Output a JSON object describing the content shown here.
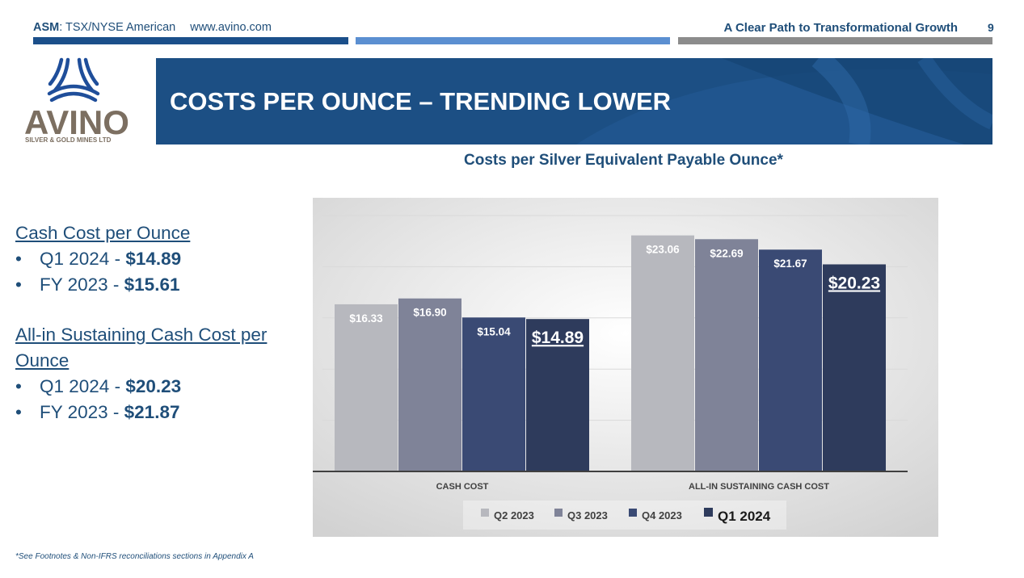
{
  "header": {
    "ticker_label": "ASM",
    "ticker_rest": ": TSX/NYSE American",
    "website": "www.avino.com",
    "tagline": "A Clear Path to Transformational Growth",
    "page_number": "9"
  },
  "logo": {
    "name": "AVINO",
    "subtitle": "SILVER & GOLD MINES LTD",
    "icon": "avino-logo-icon"
  },
  "banner": {
    "title": "COSTS PER OUNCE – TRENDING LOWER"
  },
  "colors": {
    "banner": "#1c4f84",
    "accent_text": "#1f4e79",
    "q2_2023": "#b7b8be",
    "q3_2023": "#7f8398",
    "q4_2023": "#3a4a74",
    "q1_2024": "#2e3b5c"
  },
  "left_panel": {
    "cash_cost_heading": "Cash Cost per Ounce",
    "cash_cost_items": [
      {
        "label": "Q1 2024 - ",
        "value": "$14.89"
      },
      {
        "label": "FY 2023 - ",
        "value": "$15.61"
      }
    ],
    "aisc_heading_line1": "All-in Sustaining Cash Cost per",
    "aisc_heading_line2": "Ounce",
    "aisc_items": [
      {
        "label": "Q1 2024 - ",
        "value": "$20.23"
      },
      {
        "label": "FY 2023 - ",
        "value": "$21.87"
      }
    ]
  },
  "chart_data": {
    "type": "bar",
    "title": "Costs per Silver Equivalent Payable Ounce*",
    "categories": [
      "CASH COST",
      "ALL-IN SUSTAINING CASH COST"
    ],
    "series": [
      {
        "name": "Q2 2023",
        "values": [
          16.33,
          23.06
        ],
        "labels": [
          "$16.33",
          "$23.06"
        ]
      },
      {
        "name": "Q3 2023",
        "values": [
          16.9,
          22.69
        ],
        "labels": [
          "$16.90",
          "$22.69"
        ]
      },
      {
        "name": "Q4 2023",
        "values": [
          15.04,
          21.67
        ],
        "labels": [
          "$15.04",
          "$21.67"
        ]
      },
      {
        "name": "Q1 2024",
        "values": [
          14.89,
          20.23
        ],
        "labels": [
          "$14.89",
          "$20.23"
        ]
      }
    ],
    "ylim": [
      0,
      25
    ],
    "grid": true,
    "legend_position": "bottom"
  },
  "footnote": "*See Footnotes & Non-IFRS reconciliations sections in Appendix A"
}
